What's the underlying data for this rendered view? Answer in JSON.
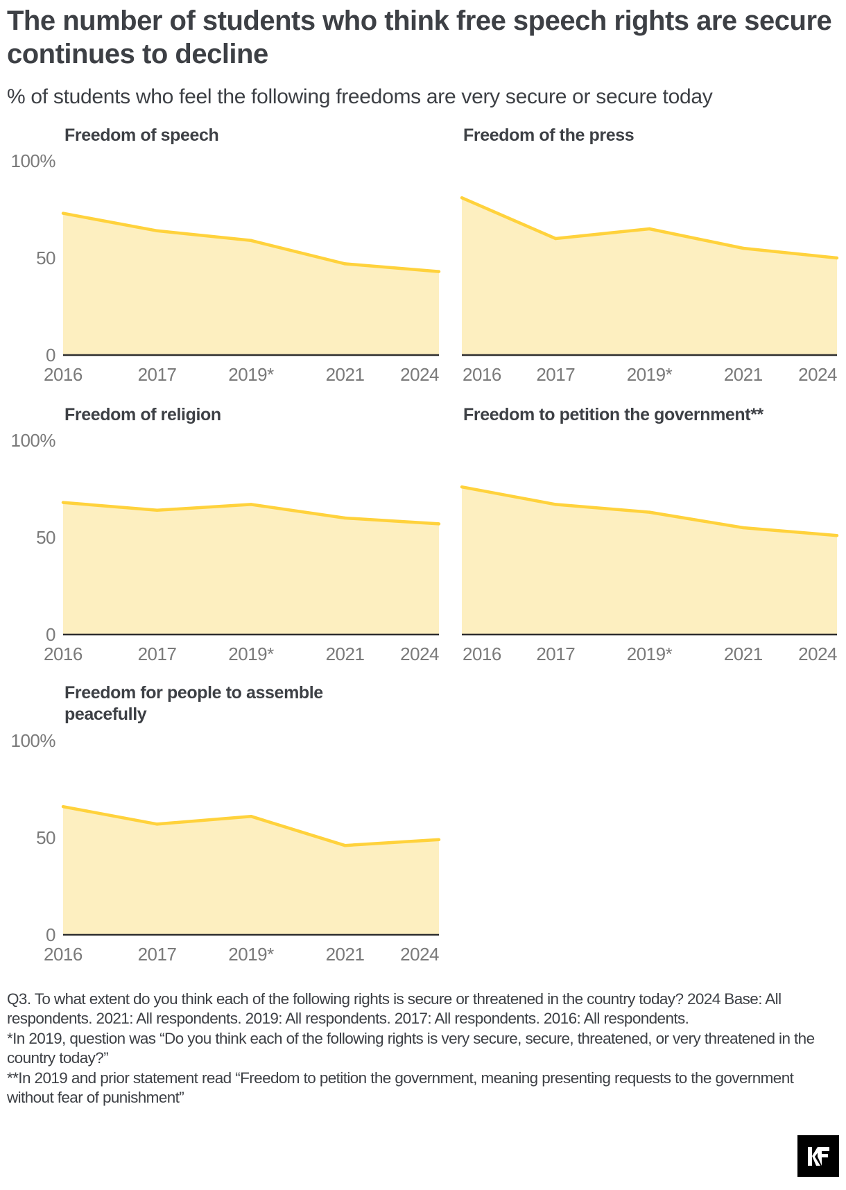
{
  "header": {
    "title": "The number of students who think free speech rights are secure continues to decline",
    "subtitle": "% of students who feel the following freedoms are very secure or secure today"
  },
  "colors": {
    "line": "#FFD23C",
    "fill": "#FDEFC0",
    "axis": "#2e2e2e",
    "tick_text": "#7a7a7a",
    "title_text": "#3d4045"
  },
  "chart_data": [
    {
      "type": "area",
      "title": "Freedom of speech",
      "categories": [
        "2016",
        "2017",
        "2019*",
        "2021",
        "2024"
      ],
      "values": [
        73,
        64,
        59,
        47,
        43
      ],
      "yticks": [
        "0",
        "50",
        "100%"
      ],
      "ylim": [
        0,
        100
      ],
      "xlabel": "",
      "ylabel": "",
      "grid": false
    },
    {
      "type": "area",
      "title": "Freedom of the press",
      "categories": [
        "2016",
        "2017",
        "2019*",
        "2021",
        "2024"
      ],
      "values": [
        81,
        60,
        65,
        55,
        50
      ],
      "yticks": [],
      "ylim": [
        0,
        100
      ],
      "xlabel": "",
      "ylabel": "",
      "grid": false
    },
    {
      "type": "area",
      "title": "Freedom of religion",
      "categories": [
        "2016",
        "2017",
        "2019*",
        "2021",
        "2024"
      ],
      "values": [
        68,
        64,
        67,
        60,
        57
      ],
      "yticks": [
        "0",
        "50",
        "100%"
      ],
      "ylim": [
        0,
        100
      ],
      "xlabel": "",
      "ylabel": "",
      "grid": false
    },
    {
      "type": "area",
      "title": "Freedom to petition the government**",
      "categories": [
        "2016",
        "2017",
        "2019*",
        "2021",
        "2024"
      ],
      "values": [
        76,
        67,
        63,
        55,
        51
      ],
      "yticks": [],
      "ylim": [
        0,
        100
      ],
      "xlabel": "",
      "ylabel": "",
      "grid": false
    },
    {
      "type": "area",
      "title": "Freedom for people to assemble peacefully",
      "title_lines": [
        "Freedom for people to assemble",
        "peacefully"
      ],
      "categories": [
        "2016",
        "2017",
        "2019*",
        "2021",
        "2024"
      ],
      "values": [
        66,
        57,
        61,
        46,
        49
      ],
      "yticks": [
        "0",
        "50",
        "100%"
      ],
      "ylim": [
        0,
        100
      ],
      "xlabel": "",
      "ylabel": "",
      "grid": false
    }
  ],
  "footnotes": [
    "Q3. To what extent do you think each of the following rights is secure or threatened in the country today? 2024 Base: All respondents. 2021: All respondents. 2019: All respondents. 2017: All respondents. 2016: All respondents.",
    "*In 2019, question was “Do you think each of the following rights is very secure, secure, threatened, or very threatened in the country today?”",
    "**In 2019 and prior statement read “Freedom to petition the government, meaning presenting requests to the government without fear of punishment”"
  ],
  "logo": {
    "text": "KF"
  }
}
